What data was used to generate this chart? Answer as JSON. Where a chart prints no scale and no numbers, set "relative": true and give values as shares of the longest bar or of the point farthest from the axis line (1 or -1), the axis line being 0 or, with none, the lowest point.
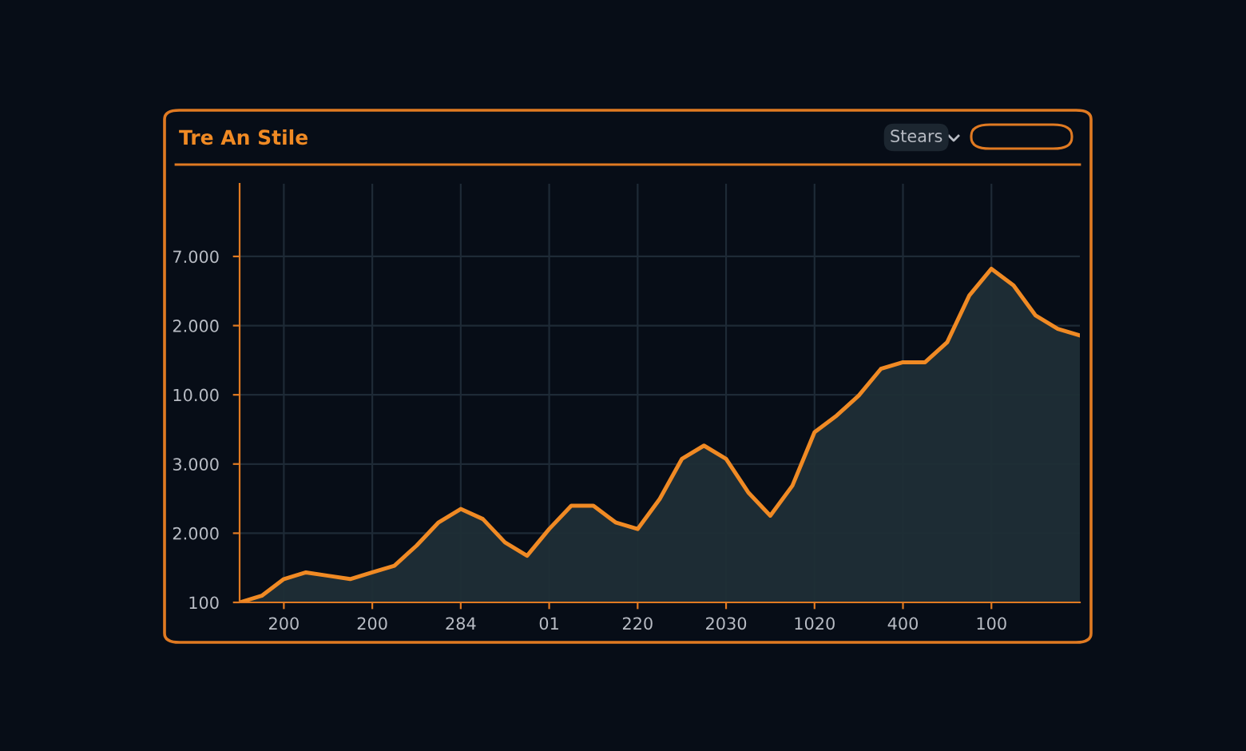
{
  "chart_data": {
    "type": "area",
    "title": "Tre An Stile",
    "relative": true,
    "annotations": [
      "Stears",
      "100",
      "2.000",
      "3.000",
      "10.00",
      "2.000",
      "7.000"
    ],
    "categories": [
      null,
      null,
      "200",
      null,
      null,
      null,
      "200",
      null,
      null,
      null,
      "284",
      null,
      null,
      null,
      "01",
      null,
      null,
      null,
      "220",
      null,
      null,
      null,
      "2030",
      null,
      null,
      null,
      "1020",
      null,
      null,
      null,
      "400",
      null,
      null,
      null,
      "100",
      null,
      null,
      null,
      null
    ],
    "series": [
      {
        "color": "#f08a24",
        "values": [
          0,
          0.02,
          0.07,
          0.09,
          0.08,
          0.07,
          0.09,
          0.11,
          0.17,
          0.24,
          0.28,
          0.25,
          0.18,
          0.14,
          0.22,
          0.29,
          0.29,
          0.24,
          0.22,
          0.31,
          0.43,
          0.47,
          0.43,
          0.33,
          0.26,
          0.35,
          0.51,
          0.56,
          0.62,
          0.7,
          0.72,
          0.72,
          0.78,
          0.92,
          1,
          0.95,
          0.86,
          0.82,
          0.8
        ]
      }
    ],
    "grid": true
  }
}
